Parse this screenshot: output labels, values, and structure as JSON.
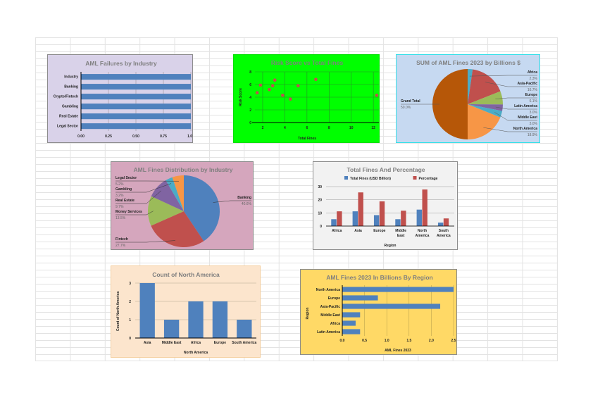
{
  "chart_data": [
    {
      "id": "aml_failures",
      "type": "bar",
      "orientation": "horizontal",
      "title": "AML Failures by Industry",
      "categories": [
        "Industry",
        "Banking",
        "Crypto/Fintech",
        "Gambling",
        "Real Estate",
        "Legal Sector"
      ],
      "values": [
        1,
        1,
        1,
        1,
        1,
        1
      ],
      "xticks": [
        "0.00",
        "0.25",
        "0.50",
        "0.75",
        "1.00"
      ],
      "xlim": [
        0,
        1
      ],
      "grid": true,
      "background": "#d9d2e9",
      "bar_color": "#4f81bd"
    },
    {
      "id": "risk_vs_fines",
      "type": "scatter",
      "title": "Risk Score vs Total Fines",
      "xlabel": "Total Fines",
      "ylabel": "Risk Score",
      "x": [
        1.5,
        1.8,
        2.6,
        2.9,
        3.1,
        3.8,
        4.5,
        5.2,
        6.8,
        12.3
      ],
      "y": [
        4.7,
        5.9,
        5.2,
        5.8,
        6.7,
        4.3,
        3.7,
        5.8,
        6.8,
        4.3
      ],
      "xticks": [
        "2",
        "4",
        "6",
        "8",
        "10",
        "12"
      ],
      "yticks": [
        "0",
        "2",
        "4",
        "6",
        "8"
      ],
      "xlim": [
        1.3,
        12.5
      ],
      "ylim": [
        0,
        8
      ],
      "grid": true,
      "background": "#00ff00",
      "point_color": "#c0504d"
    },
    {
      "id": "sum_fines_pie",
      "type": "pie",
      "title": "SUM of AML Fines 2023 by Billions $",
      "categories": [
        "Africa",
        "Asia-Pacific",
        "Europe",
        "Latin America",
        "Middle East",
        "North America",
        "Grand Total"
      ],
      "values": [
        2.3,
        16.7,
        6.1,
        3.0,
        3.0,
        18.9,
        50.0
      ],
      "labels": [
        "2.3%",
        "16.7%",
        "6.1%",
        "3.0%",
        "3.0%",
        "18.9%",
        "50.0%"
      ],
      "colors": [
        "#4bacc6",
        "#c0504d",
        "#9bbb59",
        "#8064a2",
        "#4bacc6",
        "#f79646",
        "#b65708"
      ],
      "background": "#c6d9f1"
    },
    {
      "id": "fines_by_industry_pie",
      "type": "pie",
      "title": "AML Fines Distribution by Industry",
      "categories": [
        "Banking",
        "Fintech",
        "Money Services",
        "Real Estate",
        "Gambling",
        "Legal Sector"
      ],
      "values": [
        40.6,
        27.7,
        13.5,
        9.7,
        3.2,
        5.2
      ],
      "labels": [
        "40.6%",
        "27.7%",
        "13.5%",
        "9.7%",
        "3.2%",
        "5.2%"
      ],
      "colors": [
        "#4f81bd",
        "#c0504d",
        "#9bbb59",
        "#8064a2",
        "#4bacc6",
        "#f79646"
      ],
      "background": "#d5a6bd"
    },
    {
      "id": "total_fines_pct",
      "type": "bar",
      "title": "Total Fines And Percentage",
      "xlabel": "Region",
      "categories": [
        "Africa",
        "Asia",
        "Europe",
        "Middle East",
        "North America",
        "South America"
      ],
      "series": [
        {
          "name": "Total Fines (USD Billion)",
          "values": [
            5.2,
            11.2,
            8.3,
            5.2,
            12.5,
            2.6
          ],
          "color": "#4f81bd"
        },
        {
          "name": "Percentage",
          "values": [
            11.2,
            25.6,
            18.8,
            11.7,
            27.8,
            5.8
          ],
          "color": "#c0504d"
        }
      ],
      "yticks": [
        "0",
        "10",
        "20",
        "30"
      ],
      "ylim": [
        0,
        30
      ],
      "legend_position": "top",
      "grid": true,
      "background": "#f2f2f2"
    },
    {
      "id": "count_north_america",
      "type": "bar",
      "title": "Count of North America",
      "xlabel": "North America",
      "ylabel": "Count of North America",
      "categories": [
        "Asia",
        "Middle East",
        "Africa",
        "Europe",
        "South America"
      ],
      "values": [
        3,
        1,
        2,
        2,
        1
      ],
      "yticks": [
        "0",
        "1",
        "2",
        "3"
      ],
      "ylim": [
        0,
        3
      ],
      "grid": true,
      "background": "#fce5cd",
      "bar_color": "#4f81bd"
    },
    {
      "id": "fines_by_region",
      "type": "bar",
      "orientation": "horizontal",
      "title": "AML Fines 2023 In Billions By Region",
      "xlabel": "AML Fines 2023",
      "ylabel": "Region",
      "categories": [
        "North America",
        "Europe",
        "Asia-Pacific",
        "Middle East",
        "Africa",
        "Latin America"
      ],
      "values": [
        2.5,
        0.8,
        2.2,
        0.4,
        0.3,
        0.4
      ],
      "xticks": [
        "0.0",
        "0.5",
        "1.0",
        "1.5",
        "2.0",
        "2.5"
      ],
      "xlim": [
        0,
        2.5
      ],
      "grid": true,
      "background": "#ffd966",
      "bar_color": "#4f81bd"
    }
  ]
}
